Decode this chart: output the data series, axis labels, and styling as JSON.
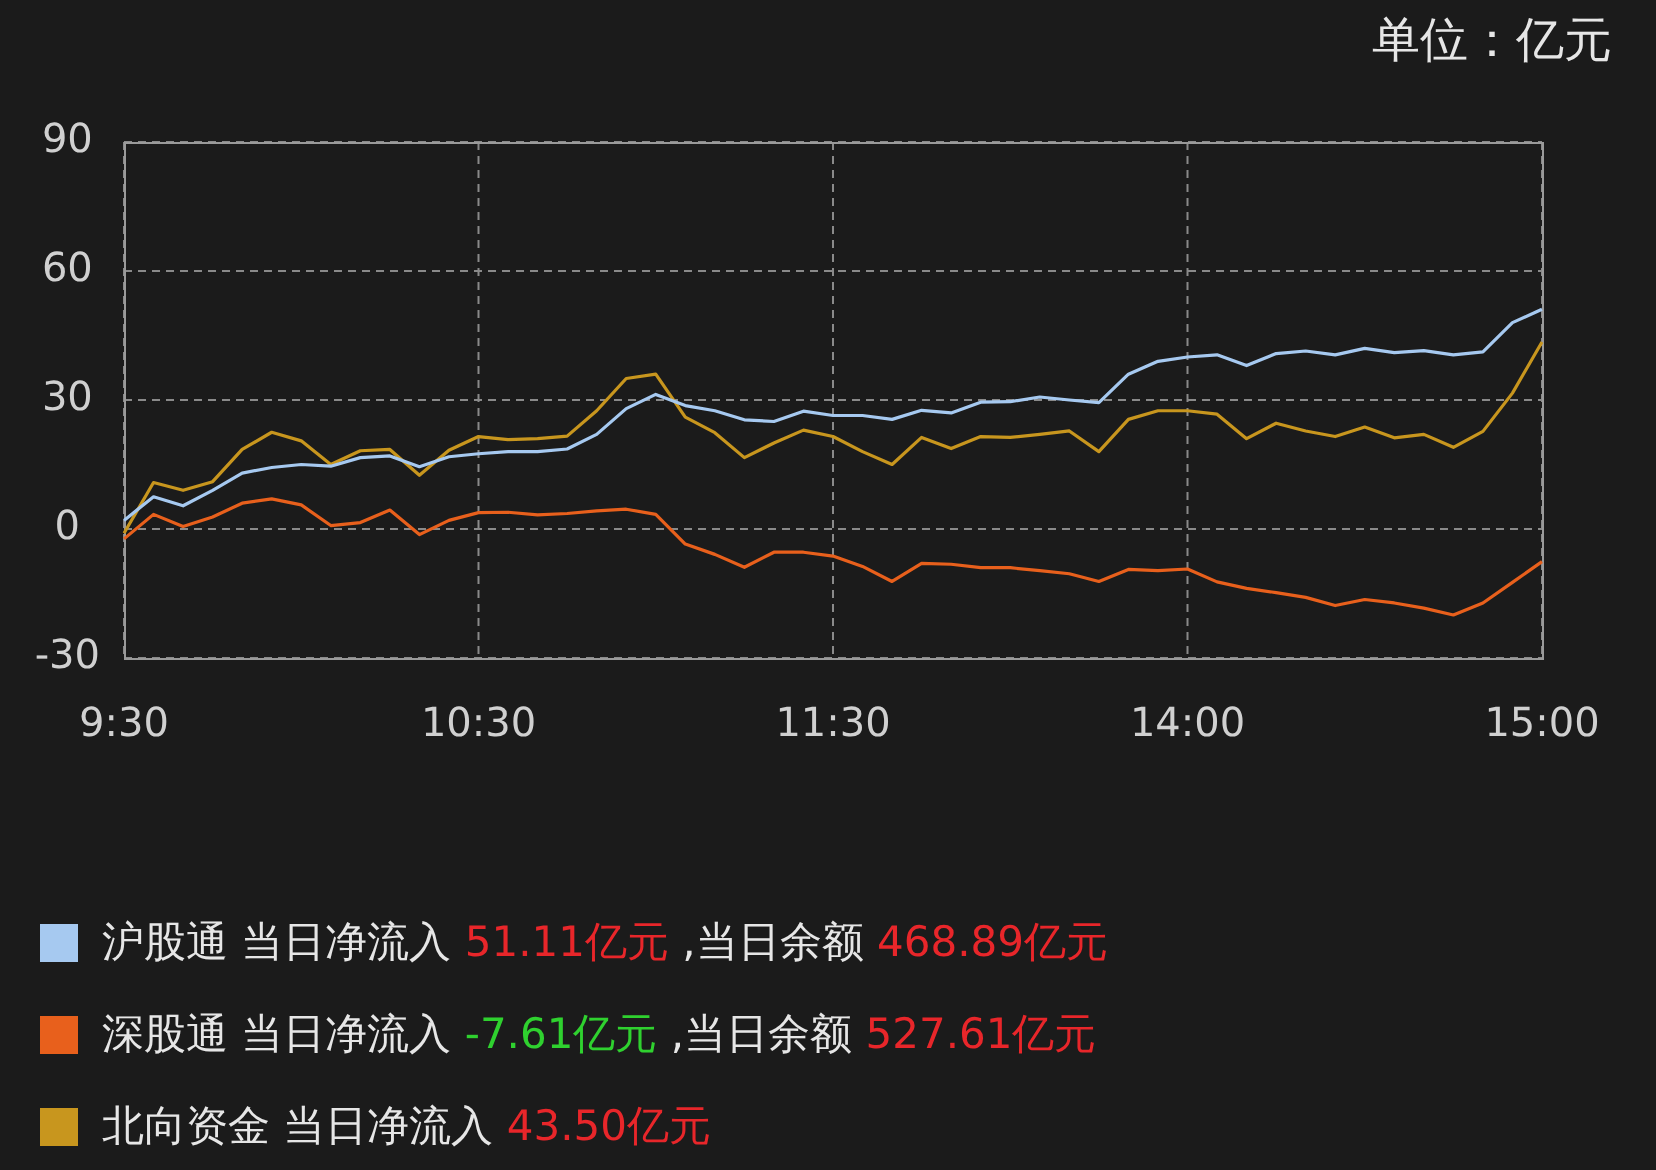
{
  "chart_data": {
    "type": "line",
    "ylabel": "单位：亿元",
    "categories": [
      "9:30",
      null,
      null,
      null,
      null,
      null,
      null,
      null,
      null,
      null,
      null,
      null,
      "10:30",
      null,
      null,
      null,
      null,
      null,
      null,
      null,
      null,
      null,
      null,
      null,
      "11:30",
      null,
      null,
      null,
      null,
      null,
      null,
      null,
      null,
      null,
      null,
      null,
      "14:00",
      null,
      null,
      null,
      null,
      null,
      null,
      null,
      null,
      null,
      null,
      null,
      "15:00"
    ],
    "ylim": [
      -30,
      90
    ],
    "yticks": [
      -30,
      0,
      30,
      60,
      90
    ],
    "grid": true,
    "legend": "bottom",
    "marker": "none",
    "line_style": "solid",
    "series": [
      {
        "name": "沪股通",
        "color": "#a6c9f0",
        "values": [
          2,
          7.5,
          5.4,
          9,
          13,
          14.3,
          15,
          14.6,
          16.6,
          17,
          14.5,
          16.8,
          17.5,
          18,
          18,
          18.6,
          22,
          28,
          31.3,
          28.7,
          27.5,
          25.4,
          25,
          27.4,
          26.4,
          26.4,
          25.5,
          27.6,
          27,
          29.5,
          29.6,
          30.7,
          30,
          29.4,
          36,
          39,
          40,
          40.5,
          38,
          40.8,
          41.4,
          40.5,
          42,
          41,
          41.5,
          40.5,
          41.2,
          48,
          51.1
        ]
      },
      {
        "name": "深股通",
        "color": "#e8601c",
        "values": [
          -2.3,
          3.4,
          0.6,
          2.8,
          6,
          7,
          5.6,
          0.8,
          1.5,
          4.4,
          -1.3,
          2,
          3.8,
          3.9,
          3.3,
          3.6,
          4.2,
          4.6,
          3.4,
          -3.5,
          -5.9,
          -8.9,
          -5.4,
          -5.4,
          -6.3,
          -8.7,
          -12.2,
          -8,
          -8.2,
          -9,
          -9,
          -9.7,
          -10.4,
          -12.2,
          -9.4,
          -9.7,
          -9.3,
          -12.3,
          -13.8,
          -14.8,
          -15.9,
          -17.8,
          -16.4,
          -17.2,
          -18.4,
          -20,
          -17.2,
          -12.4,
          -7.6
        ]
      },
      {
        "name": "北向资金",
        "color": "#c8961e",
        "values": [
          -1,
          10.8,
          9,
          11,
          18.5,
          22.5,
          20.5,
          15,
          18.2,
          18.5,
          12.5,
          18.3,
          21.5,
          20.8,
          21,
          21.6,
          27.5,
          35,
          36,
          26,
          22.4,
          16.6,
          20,
          23,
          21.5,
          18,
          15,
          21.3,
          18.7,
          21.5,
          21.3,
          22,
          22.8,
          18,
          25.5,
          27.5,
          27.5,
          26.7,
          21,
          24.6,
          22.8,
          21.5,
          23.7,
          21.2,
          22,
          19,
          22.7,
          31.6,
          43.5
        ]
      }
    ],
    "annotations": [
      "当日净流入 51.11亿元 ,当日余额 468.89亿元",
      "当日净流入 -7.61亿元 ,当日余额 527.61亿元",
      "当日净流入 43.50亿元"
    ]
  }
}
